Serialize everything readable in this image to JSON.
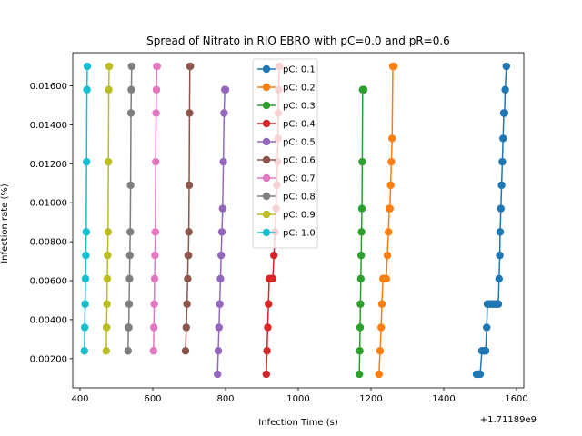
{
  "chart_data": {
    "type": "line",
    "title": "Spread of Nitrato in RIO EBRO with pC=0.0 and pR=0.6",
    "xlabel": "Infection Time (s)",
    "ylabel": "Infection rate (%)",
    "x_offset_label": "+1.71189e9",
    "xlim": [
      380,
      1620
    ],
    "ylim": [
      0.0005,
      0.0177
    ],
    "xticks": [
      400,
      600,
      800,
      1000,
      1200,
      1400,
      1600
    ],
    "yticks": [
      0.002,
      0.004,
      0.006,
      0.008,
      0.01,
      0.012,
      0.014,
      0.016
    ],
    "ytick_labels": [
      "0.00200",
      "0.00400",
      "0.00600",
      "0.00800",
      "0.01000",
      "0.01200",
      "0.01400",
      "0.01600"
    ],
    "legend_position": "upper center",
    "series": [
      {
        "name": "pC: 0.1",
        "color": "#1f77b4",
        "points": [
          [
            1490,
            0.0012
          ],
          [
            1495,
            0.0012
          ],
          [
            1500,
            0.0012
          ],
          [
            1505,
            0.0024
          ],
          [
            1510,
            0.0024
          ],
          [
            1515,
            0.0024
          ],
          [
            1518,
            0.0036
          ],
          [
            1520,
            0.0048
          ],
          [
            1525,
            0.0048
          ],
          [
            1530,
            0.0048
          ],
          [
            1535,
            0.0048
          ],
          [
            1540,
            0.0048
          ],
          [
            1545,
            0.0048
          ],
          [
            1550,
            0.0048
          ],
          [
            1552,
            0.0061
          ],
          [
            1554,
            0.0073
          ],
          [
            1555,
            0.0085
          ],
          [
            1557,
            0.0097
          ],
          [
            1559,
            0.0109
          ],
          [
            1561,
            0.0121
          ],
          [
            1563,
            0.0133
          ],
          [
            1565,
            0.0146
          ],
          [
            1567,
            0.0146
          ],
          [
            1569,
            0.0158
          ],
          [
            1572,
            0.017
          ]
        ]
      },
      {
        "name": "pC: 0.2",
        "color": "#ff7f0e",
        "points": [
          [
            1222,
            0.0012
          ],
          [
            1225,
            0.0024
          ],
          [
            1228,
            0.0036
          ],
          [
            1230,
            0.0048
          ],
          [
            1233,
            0.0061
          ],
          [
            1236,
            0.0061
          ],
          [
            1239,
            0.0061
          ],
          [
            1242,
            0.0061
          ],
          [
            1245,
            0.0073
          ],
          [
            1248,
            0.0085
          ],
          [
            1250,
            0.0097
          ],
          [
            1252,
            0.0097
          ],
          [
            1254,
            0.0109
          ],
          [
            1256,
            0.0121
          ],
          [
            1258,
            0.0133
          ],
          [
            1260,
            0.017
          ],
          [
            1263,
            0.017
          ]
        ]
      },
      {
        "name": "pC: 0.3",
        "color": "#2ca02c",
        "points": [
          [
            1168,
            0.0012
          ],
          [
            1169,
            0.0024
          ],
          [
            1170,
            0.0036
          ],
          [
            1171,
            0.0048
          ],
          [
            1172,
            0.0061
          ],
          [
            1173,
            0.0073
          ],
          [
            1174,
            0.0085
          ],
          [
            1175,
            0.0097
          ],
          [
            1176,
            0.0121
          ],
          [
            1177,
            0.0158
          ],
          [
            1180,
            0.0158
          ]
        ]
      },
      {
        "name": "pC: 0.4",
        "color": "#d62728",
        "points": [
          [
            912,
            0.0012
          ],
          [
            914,
            0.0024
          ],
          [
            916,
            0.0036
          ],
          [
            918,
            0.0048
          ],
          [
            920,
            0.0061
          ],
          [
            925,
            0.0061
          ],
          [
            930,
            0.0061
          ],
          [
            933,
            0.0073
          ],
          [
            936,
            0.0085
          ],
          [
            939,
            0.0097
          ],
          [
            941,
            0.0109
          ],
          [
            943,
            0.0121
          ],
          [
            944,
            0.0133
          ],
          [
            945,
            0.0146
          ],
          [
            946,
            0.0158
          ],
          [
            948,
            0.017
          ]
        ]
      },
      {
        "name": "pC: 0.5",
        "color": "#9467bd",
        "points": [
          [
            778,
            0.0012
          ],
          [
            780,
            0.0024
          ],
          [
            782,
            0.0036
          ],
          [
            784,
            0.0048
          ],
          [
            786,
            0.0061
          ],
          [
            788,
            0.0073
          ],
          [
            790,
            0.0085
          ],
          [
            792,
            0.0097
          ],
          [
            794,
            0.0121
          ],
          [
            796,
            0.0146
          ],
          [
            798,
            0.0158
          ],
          [
            800,
            0.0158
          ]
        ]
      },
      {
        "name": "pC: 0.6",
        "color": "#8c564b",
        "points": [
          [
            690,
            0.0024
          ],
          [
            692,
            0.0036
          ],
          [
            694,
            0.0048
          ],
          [
            696,
            0.0061
          ],
          [
            697,
            0.0073
          ],
          [
            698,
            0.0073
          ],
          [
            699,
            0.0085
          ],
          [
            700,
            0.0109
          ],
          [
            701,
            0.0146
          ],
          [
            702,
            0.017
          ],
          [
            703,
            0.017
          ]
        ]
      },
      {
        "name": "pC: 0.7",
        "color": "#e377c2",
        "points": [
          [
            602,
            0.0024
          ],
          [
            603,
            0.0036
          ],
          [
            604,
            0.0048
          ],
          [
            605,
            0.0061
          ],
          [
            606,
            0.0073
          ],
          [
            607,
            0.0085
          ],
          [
            608,
            0.0121
          ],
          [
            609,
            0.0146
          ],
          [
            610,
            0.0158
          ],
          [
            611,
            0.017
          ],
          [
            612,
            0.017
          ]
        ]
      },
      {
        "name": "pC: 0.8",
        "color": "#7f7f7f",
        "points": [
          [
            532,
            0.0024
          ],
          [
            533,
            0.0036
          ],
          [
            534,
            0.0036
          ],
          [
            535,
            0.0048
          ],
          [
            536,
            0.0061
          ],
          [
            537,
            0.0073
          ],
          [
            538,
            0.0085
          ],
          [
            539,
            0.0109
          ],
          [
            540,
            0.0146
          ],
          [
            541,
            0.0158
          ],
          [
            542,
            0.017
          ]
        ]
      },
      {
        "name": "pC: 0.9",
        "color": "#bcbd22",
        "points": [
          [
            472,
            0.0024
          ],
          [
            473,
            0.0036
          ],
          [
            474,
            0.0048
          ],
          [
            475,
            0.0061
          ],
          [
            476,
            0.0073
          ],
          [
            477,
            0.0085
          ],
          [
            478,
            0.0121
          ],
          [
            479,
            0.0158
          ],
          [
            480,
            0.017
          ]
        ]
      },
      {
        "name": "pC: 1.0",
        "color": "#17becf",
        "points": [
          [
            412,
            0.0024
          ],
          [
            413,
            0.0036
          ],
          [
            414,
            0.0048
          ],
          [
            415,
            0.0061
          ],
          [
            416,
            0.0073
          ],
          [
            417,
            0.0085
          ],
          [
            418,
            0.0121
          ],
          [
            419,
            0.0158
          ],
          [
            420,
            0.017
          ]
        ]
      }
    ]
  }
}
